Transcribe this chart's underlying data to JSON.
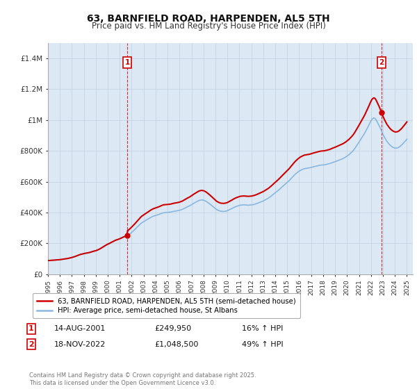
{
  "title": "63, BARNFIELD ROAD, HARPENDEN, AL5 5TH",
  "subtitle": "Price paid vs. HM Land Registry's House Price Index (HPI)",
  "legend_line1": "63, BARNFIELD ROAD, HARPENDEN, AL5 5TH (semi-detached house)",
  "legend_line2": "HPI: Average price, semi-detached house, St Albans",
  "annotation1_date": "14-AUG-2001",
  "annotation1_price": "£249,950",
  "annotation1_pct": "16% ↑ HPI",
  "annotation2_date": "18-NOV-2022",
  "annotation2_price": "£1,048,500",
  "annotation2_pct": "49% ↑ HPI",
  "footer": "Contains HM Land Registry data © Crown copyright and database right 2025.\nThis data is licensed under the Open Government Licence v3.0.",
  "price_color": "#cc0000",
  "hpi_color": "#88b8e0",
  "vline_color": "#cc0000",
  "background_color": "#e8f0f8",
  "plot_bg_color": "#dce8f4",
  "grid_color": "#c0d0e0",
  "ylim": [
    0,
    1500000
  ],
  "yticks": [
    0,
    200000,
    400000,
    600000,
    800000,
    1000000,
    1200000,
    1400000
  ],
  "ytick_labels": [
    "£0",
    "£200K",
    "£400K",
    "£600K",
    "£800K",
    "£1M",
    "£1.2M",
    "£1.4M"
  ],
  "sale1_x": 2001.621,
  "sale1_y": 249950,
  "sale2_x": 2022.879,
  "sale2_y": 1048500,
  "hpi_years": [
    1995.0,
    1995.083,
    1995.167,
    1995.25,
    1995.333,
    1995.417,
    1995.5,
    1995.583,
    1995.667,
    1995.75,
    1995.833,
    1995.917,
    1996.0,
    1996.083,
    1996.167,
    1996.25,
    1996.333,
    1996.417,
    1996.5,
    1996.583,
    1996.667,
    1996.75,
    1996.833,
    1996.917,
    1997.0,
    1997.083,
    1997.167,
    1997.25,
    1997.333,
    1997.417,
    1997.5,
    1997.583,
    1997.667,
    1997.75,
    1997.833,
    1997.917,
    1998.0,
    1998.083,
    1998.167,
    1998.25,
    1998.333,
    1998.417,
    1998.5,
    1998.583,
    1998.667,
    1998.75,
    1998.833,
    1998.917,
    1999.0,
    1999.083,
    1999.167,
    1999.25,
    1999.333,
    1999.417,
    1999.5,
    1999.583,
    1999.667,
    1999.75,
    1999.833,
    1999.917,
    2000.0,
    2000.083,
    2000.167,
    2000.25,
    2000.333,
    2000.417,
    2000.5,
    2000.583,
    2000.667,
    2000.75,
    2000.833,
    2000.917,
    2001.0,
    2001.083,
    2001.167,
    2001.25,
    2001.333,
    2001.417,
    2001.5,
    2001.583,
    2001.667,
    2001.75,
    2001.833,
    2001.917,
    2002.0,
    2002.083,
    2002.167,
    2002.25,
    2002.333,
    2002.417,
    2002.5,
    2002.583,
    2002.667,
    2002.75,
    2002.833,
    2002.917,
    2003.0,
    2003.083,
    2003.167,
    2003.25,
    2003.333,
    2003.417,
    2003.5,
    2003.583,
    2003.667,
    2003.75,
    2003.833,
    2003.917,
    2004.0,
    2004.083,
    2004.167,
    2004.25,
    2004.333,
    2004.417,
    2004.5,
    2004.583,
    2004.667,
    2004.75,
    2004.833,
    2004.917,
    2005.0,
    2005.083,
    2005.167,
    2005.25,
    2005.333,
    2005.417,
    2005.5,
    2005.583,
    2005.667,
    2005.75,
    2005.833,
    2005.917,
    2006.0,
    2006.083,
    2006.167,
    2006.25,
    2006.333,
    2006.417,
    2006.5,
    2006.583,
    2006.667,
    2006.75,
    2006.833,
    2006.917,
    2007.0,
    2007.083,
    2007.167,
    2007.25,
    2007.333,
    2007.417,
    2007.5,
    2007.583,
    2007.667,
    2007.75,
    2007.833,
    2007.917,
    2008.0,
    2008.083,
    2008.167,
    2008.25,
    2008.333,
    2008.417,
    2008.5,
    2008.583,
    2008.667,
    2008.75,
    2008.833,
    2008.917,
    2009.0,
    2009.083,
    2009.167,
    2009.25,
    2009.333,
    2009.417,
    2009.5,
    2009.583,
    2009.667,
    2009.75,
    2009.833,
    2009.917,
    2010.0,
    2010.083,
    2010.167,
    2010.25,
    2010.333,
    2010.417,
    2010.5,
    2010.583,
    2010.667,
    2010.75,
    2010.833,
    2010.917,
    2011.0,
    2011.083,
    2011.167,
    2011.25,
    2011.333,
    2011.417,
    2011.5,
    2011.583,
    2011.667,
    2011.75,
    2011.833,
    2011.917,
    2012.0,
    2012.083,
    2012.167,
    2012.25,
    2012.333,
    2012.417,
    2012.5,
    2012.583,
    2012.667,
    2012.75,
    2012.833,
    2012.917,
    2013.0,
    2013.083,
    2013.167,
    2013.25,
    2013.333,
    2013.417,
    2013.5,
    2013.583,
    2013.667,
    2013.75,
    2013.833,
    2013.917,
    2014.0,
    2014.083,
    2014.167,
    2014.25,
    2014.333,
    2014.417,
    2014.5,
    2014.583,
    2014.667,
    2014.75,
    2014.833,
    2014.917,
    2015.0,
    2015.083,
    2015.167,
    2015.25,
    2015.333,
    2015.417,
    2015.5,
    2015.583,
    2015.667,
    2015.75,
    2015.833,
    2015.917,
    2016.0,
    2016.083,
    2016.167,
    2016.25,
    2016.333,
    2016.417,
    2016.5,
    2016.583,
    2016.667,
    2016.75,
    2016.833,
    2016.917,
    2017.0,
    2017.083,
    2017.167,
    2017.25,
    2017.333,
    2017.417,
    2017.5,
    2017.583,
    2017.667,
    2017.75,
    2017.833,
    2017.917,
    2018.0,
    2018.083,
    2018.167,
    2018.25,
    2018.333,
    2018.417,
    2018.5,
    2018.583,
    2018.667,
    2018.75,
    2018.833,
    2018.917,
    2019.0,
    2019.083,
    2019.167,
    2019.25,
    2019.333,
    2019.417,
    2019.5,
    2019.583,
    2019.667,
    2019.75,
    2019.833,
    2019.917,
    2020.0,
    2020.083,
    2020.167,
    2020.25,
    2020.333,
    2020.417,
    2020.5,
    2020.583,
    2020.667,
    2020.75,
    2020.833,
    2020.917,
    2021.0,
    2021.083,
    2021.167,
    2021.25,
    2021.333,
    2021.417,
    2021.5,
    2021.583,
    2021.667,
    2021.75,
    2021.833,
    2021.917,
    2022.0,
    2022.083,
    2022.167,
    2022.25,
    2022.333,
    2022.417,
    2022.5,
    2022.583,
    2022.667,
    2022.75,
    2022.833,
    2022.917,
    2023.0,
    2023.083,
    2023.167,
    2023.25,
    2023.333,
    2023.417,
    2023.5,
    2023.583,
    2023.667,
    2023.75,
    2023.833,
    2023.917,
    2024.0,
    2024.083,
    2024.167,
    2024.25,
    2024.333,
    2024.417,
    2024.5,
    2024.583,
    2024.667,
    2024.75,
    2024.833,
    2024.917,
    2025.0
  ],
  "hpi_values": [
    88000,
    88500,
    89000,
    89500,
    90000,
    90500,
    91000,
    91500,
    92000,
    92500,
    93000,
    93500,
    94000,
    95000,
    96000,
    97000,
    98000,
    99000,
    100000,
    101000,
    102000,
    103500,
    105000,
    106500,
    108000,
    110000,
    112000,
    114000,
    116500,
    119000,
    121500,
    124000,
    126500,
    128500,
    130000,
    131500,
    133000,
    134500,
    136000,
    137000,
    138000,
    139500,
    141000,
    143000,
    145000,
    147000,
    149000,
    150500,
    152000,
    154500,
    157000,
    160000,
    163500,
    167000,
    171000,
    175000,
    179000,
    183000,
    187000,
    190500,
    194000,
    197000,
    200000,
    203500,
    207000,
    210000,
    213500,
    217000,
    220000,
    222000,
    224000,
    226500,
    229000,
    232000,
    235000,
    238000,
    241000,
    243000,
    245000,
    247500,
    250000,
    255000,
    260000,
    265500,
    271000,
    277000,
    283000,
    289000,
    295500,
    302000,
    308000,
    314500,
    321000,
    327500,
    333000,
    337000,
    341000,
    345000,
    349000,
    352500,
    356000,
    360000,
    364000,
    368000,
    371500,
    374500,
    377000,
    379000,
    381000,
    383000,
    385000,
    387000,
    389500,
    392000,
    394500,
    397000,
    398500,
    399500,
    400000,
    400500,
    401000,
    401500,
    402000,
    403000,
    404500,
    406000,
    407500,
    408500,
    409500,
    410500,
    411500,
    413000,
    414500,
    416500,
    418500,
    421000,
    424000,
    427500,
    431000,
    434500,
    437500,
    440500,
    443500,
    447000,
    451000,
    455000,
    459000,
    462500,
    466000,
    469500,
    473000,
    476500,
    479000,
    480500,
    481500,
    481000,
    480000,
    477500,
    474500,
    471000,
    466500,
    462000,
    457000,
    452000,
    447000,
    441500,
    436000,
    430000,
    424500,
    420000,
    416500,
    413500,
    411000,
    409000,
    408000,
    407500,
    407000,
    407500,
    408500,
    410000,
    412000,
    415000,
    418000,
    421000,
    424500,
    428000,
    431500,
    434500,
    437500,
    440000,
    442000,
    444000,
    446000,
    447500,
    448500,
    449000,
    449500,
    449500,
    449000,
    448500,
    448000,
    447500,
    448000,
    448500,
    449000,
    450000,
    451500,
    453000,
    455000,
    457000,
    459500,
    462000,
    464500,
    467000,
    469500,
    472000,
    475000,
    478500,
    482000,
    485500,
    489000,
    493000,
    497500,
    502000,
    507000,
    512500,
    518000,
    523000,
    528000,
    533000,
    538000,
    543500,
    549000,
    555000,
    561000,
    567000,
    573000,
    578500,
    584000,
    589500,
    595000,
    601000,
    607000,
    614000,
    621000,
    628000,
    635000,
    641500,
    648000,
    653500,
    659000,
    664000,
    668500,
    672500,
    675500,
    678500,
    681500,
    683500,
    685000,
    686000,
    687000,
    688000,
    689000,
    690500,
    692000,
    694000,
    696000,
    697500,
    699000,
    700500,
    702000,
    703500,
    705000,
    706500,
    707500,
    708000,
    708500,
    709000,
    710000,
    711500,
    713000,
    714500,
    716000,
    718000,
    720500,
    723000,
    725500,
    727500,
    729500,
    732000,
    734500,
    737000,
    739500,
    742000,
    744500,
    747000,
    750000,
    753500,
    757000,
    761000,
    765500,
    770000,
    775000,
    781000,
    787000,
    793000,
    800000,
    808000,
    817000,
    827000,
    836500,
    846000,
    856000,
    866000,
    876000,
    886000,
    896000,
    907000,
    918000,
    930000,
    942000,
    955000,
    968000,
    981000,
    994000,
    1004000,
    1010000,
    1013000,
    1010000,
    1002000,
    990000,
    978000,
    966000,
    952000,
    938000,
    922000,
    908000,
    895000,
    883000,
    872000,
    861000,
    853000,
    845000,
    838000,
    832000,
    827000,
    823000,
    820000,
    818000,
    817000,
    818000,
    820000,
    823000,
    828000,
    833000,
    839000,
    846000,
    853000,
    860000,
    867000,
    875000
  ],
  "xmin": 1995.0,
  "xmax": 2025.5
}
